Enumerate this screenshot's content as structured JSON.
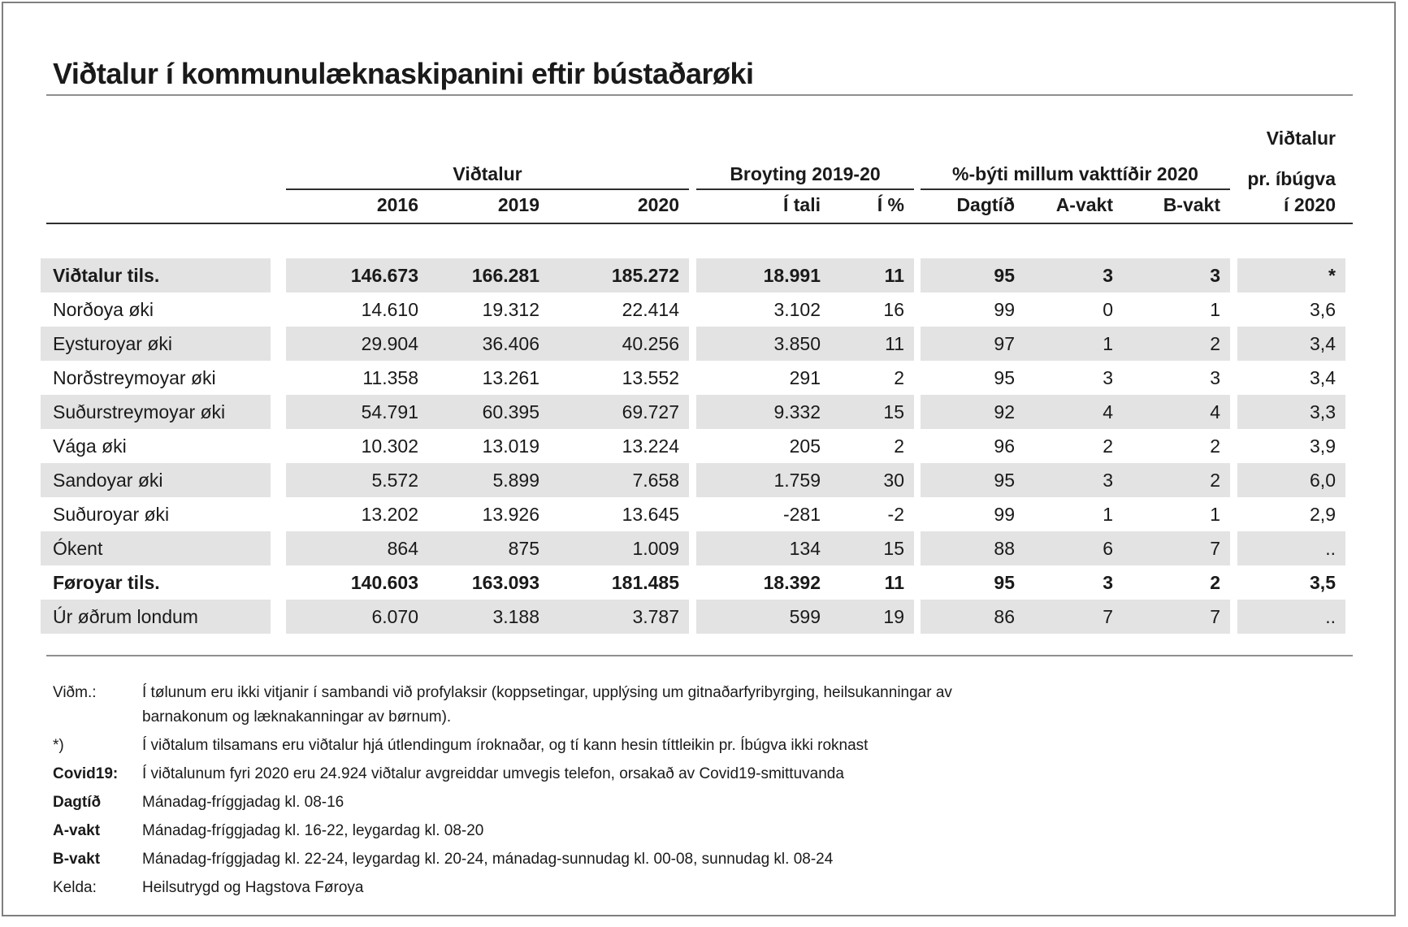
{
  "title": "Viðtalur í kommunulæknaskipanini eftir bústaðarøki",
  "colors": {
    "stripe": "#e3e3e3",
    "text": "#1a1a1a",
    "rule_dark": "#2e2e2e",
    "rule_light": "#8f8f8f",
    "frame": "#7f7f7f"
  },
  "table": {
    "col_groups": {
      "vidtalur": "Viðtalur",
      "broyting": "Broyting 2019-20",
      "vaktir": "%-býti millum vakttíðir 2020",
      "per_capita_lines": [
        "Viðtalur",
        "pr. íbúgva",
        "í 2020"
      ]
    },
    "sub_headers": [
      "2016",
      "2019",
      "2020",
      "Í tali",
      "Í %",
      "Dagtíð",
      "A-vakt",
      "B-vakt"
    ],
    "rows": [
      {
        "label": "Viðtalur tils.",
        "values": [
          "146.673",
          "166.281",
          "185.272",
          "18.991",
          "11",
          "95",
          "3",
          "3",
          "*"
        ],
        "bold": true,
        "shaded": true
      },
      {
        "label": "Norðoya øki",
        "values": [
          "14.610",
          "19.312",
          "22.414",
          "3.102",
          "16",
          "99",
          "0",
          "1",
          "3,6"
        ],
        "bold": false,
        "shaded": false
      },
      {
        "label": "Eysturoyar øki",
        "values": [
          "29.904",
          "36.406",
          "40.256",
          "3.850",
          "11",
          "97",
          "1",
          "2",
          "3,4"
        ],
        "bold": false,
        "shaded": true
      },
      {
        "label": "Norðstreymoyar øki",
        "values": [
          "11.358",
          "13.261",
          "13.552",
          "291",
          "2",
          "95",
          "3",
          "3",
          "3,4"
        ],
        "bold": false,
        "shaded": false
      },
      {
        "label": "Suðurstreymoyar øki",
        "values": [
          "54.791",
          "60.395",
          "69.727",
          "9.332",
          "15",
          "92",
          "4",
          "4",
          "3,3"
        ],
        "bold": false,
        "shaded": true
      },
      {
        "label": "Vága øki",
        "values": [
          "10.302",
          "13.019",
          "13.224",
          "205",
          "2",
          "96",
          "2",
          "2",
          "3,9"
        ],
        "bold": false,
        "shaded": false
      },
      {
        "label": "Sandoyar øki",
        "values": [
          "5.572",
          "5.899",
          "7.658",
          "1.759",
          "30",
          "95",
          "3",
          "2",
          "6,0"
        ],
        "bold": false,
        "shaded": true
      },
      {
        "label": "Suðuroyar øki",
        "values": [
          "13.202",
          "13.926",
          "13.645",
          "-281",
          "-2",
          "99",
          "1",
          "1",
          "2,9"
        ],
        "bold": false,
        "shaded": false
      },
      {
        "label": "Ókent",
        "values": [
          "864",
          "875",
          "1.009",
          "134",
          "15",
          "88",
          "6",
          "7",
          ".."
        ],
        "bold": false,
        "shaded": true
      },
      {
        "label": "Føroyar tils.",
        "values": [
          "140.603",
          "163.093",
          "181.485",
          "18.392",
          "11",
          "95",
          "3",
          "2",
          "3,5"
        ],
        "bold": true,
        "shaded": false
      },
      {
        "label": "Úr øðrum londum",
        "values": [
          "6.070",
          "3.188",
          "3.787",
          "599",
          "19",
          "86",
          "7",
          "7",
          ".."
        ],
        "bold": false,
        "shaded": true
      }
    ]
  },
  "footnotes": [
    {
      "label": "Viðm.:",
      "bold_label": false,
      "text": "Í tølunum eru ikki vitjanir í sambandi við profylaksir (koppsetingar, upplýsing um gitnaðarfyribyrging, heilsukanningar av barnakonum og læknakanningar av børnum)."
    },
    {
      "label": "*)",
      "bold_label": false,
      "text": "Í viðtalum tilsamans eru viðtalur hjá útlendingum íroknaðar, og tí kann hesin títtleikin pr. Íbúgva ikki roknast"
    },
    {
      "label": "Covid19:",
      "bold_label": true,
      "text": "Í viðtalunum fyri 2020 eru 24.924 viðtalur avgreiddar umvegis telefon, orsakað av Covid19-smittuvanda"
    },
    {
      "label": "Dagtíð",
      "bold_label": true,
      "text": "Mánadag-fríggjadag kl. 08-16"
    },
    {
      "label": "A-vakt",
      "bold_label": true,
      "text": "Mánadag-fríggjadag kl. 16-22, leygardag kl. 08-20"
    },
    {
      "label": "B-vakt",
      "bold_label": true,
      "text": "Mánadag-fríggjadag kl. 22-24, leygardag kl. 20-24, mánadag-sunnudag kl. 00-08, sunnudag kl. 08-24"
    },
    {
      "label": "Kelda:",
      "bold_label": false,
      "text": "Heilsutrygd og Hagstova Føroya"
    }
  ]
}
